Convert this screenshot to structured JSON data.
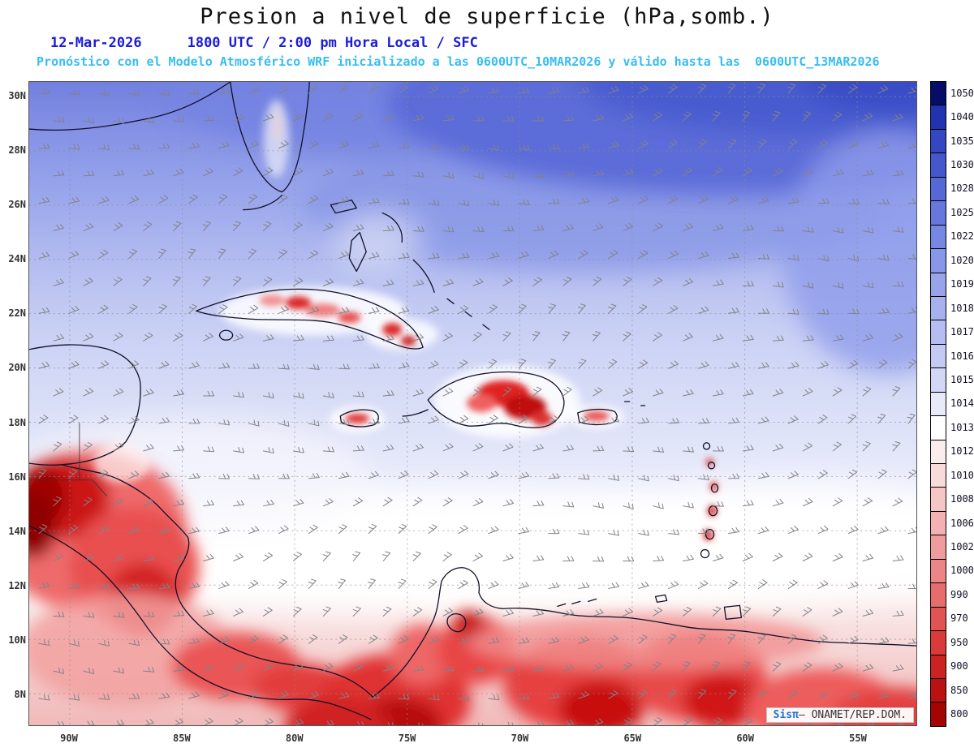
{
  "header": {
    "title": "Presion a nivel de superficie (hPa,somb.)",
    "date": "12-Mar-2026",
    "time_line": "1800 UTC / 2:00 pm Hora Local / SFC",
    "forecast_line": "Pronóstico con el Modelo Atmosférico WRF inicializado a las 0600UTC_10MAR2026 y válido hasta las  0600UTC_13MAR2026"
  },
  "axes": {
    "lat_labels": [
      "30N",
      "28N",
      "26N",
      "24N",
      "22N",
      "20N",
      "18N",
      "16N",
      "14N",
      "12N",
      "10N",
      "8N"
    ],
    "lon_labels": [
      "90W",
      "85W",
      "80W",
      "75W",
      "70W",
      "65W",
      "60W",
      "55W"
    ]
  },
  "colorbar": {
    "ticks": [
      "1050",
      "1040",
      "1035",
      "1030",
      "1028",
      "1025",
      "1022",
      "1020",
      "1019",
      "1018",
      "1017",
      "1016",
      "1015",
      "1014",
      "1013",
      "1012",
      "1010",
      "1008",
      "1006",
      "1002",
      "1000",
      "990",
      "970",
      "950",
      "900",
      "850",
      "800"
    ],
    "colors": [
      "#050e66",
      "#2233b0",
      "#3347c0",
      "#4458cc",
      "#5568d5",
      "#6678dc",
      "#7788e2",
      "#8897e7",
      "#97a4ea",
      "#a6b1ee",
      "#b5bef1",
      "#c3caf4",
      "#d2d7f6",
      "#e8eafa",
      "#ffffff",
      "#fceded",
      "#f9dada",
      "#f6c6c6",
      "#f3b1b1",
      "#f09c9c",
      "#ec8585",
      "#e76d6d",
      "#e15454",
      "#d93a3a",
      "#cd2222",
      "#bb1111",
      "#a30505"
    ]
  },
  "watermark": {
    "brand": "Sisπ",
    "text": "— ONAMET/REP.DOM."
  },
  "chart_data": {
    "type": "heatmap",
    "title": "Presion a nivel de superficie (hPa,somb.)",
    "units": "hPa",
    "x_ticks": [
      "90W",
      "85W",
      "80W",
      "75W",
      "70W",
      "65W",
      "60W",
      "55W"
    ],
    "y_ticks": [
      "30N",
      "28N",
      "26N",
      "24N",
      "22N",
      "20N",
      "18N",
      "16N",
      "14N",
      "12N",
      "10N",
      "8N"
    ],
    "color_scale_hpa": [
      800,
      850,
      900,
      950,
      970,
      990,
      1000,
      1002,
      1006,
      1008,
      1010,
      1012,
      1013,
      1014,
      1015,
      1016,
      1017,
      1018,
      1019,
      1020,
      1022,
      1025,
      1028,
      1030,
      1035,
      1040,
      1050
    ],
    "field_summary": [
      {
        "region": "Atlantic north of 26N (maximum top-right)",
        "pressure_hpa": "1022-1030"
      },
      {
        "region": "Gulf of Mexico / Florida / Bahamas",
        "pressure_hpa": "1018-1022"
      },
      {
        "region": "Greater Antilles waters",
        "pressure_hpa": "1015-1017"
      },
      {
        "region": "central Caribbean 12N-15N (white band)",
        "pressure_hpa": "1013-1014"
      },
      {
        "region": "southern Caribbean coastal waters",
        "pressure_hpa": "1008-1012"
      },
      {
        "region": "Central America, Colombia, Venezuela interiors and island terrain",
        "pressure_hpa": "below 1000 (terrain-reduced reds)"
      }
    ],
    "overlay": "gray wind barbs showing easterly trade-wind flow"
  }
}
